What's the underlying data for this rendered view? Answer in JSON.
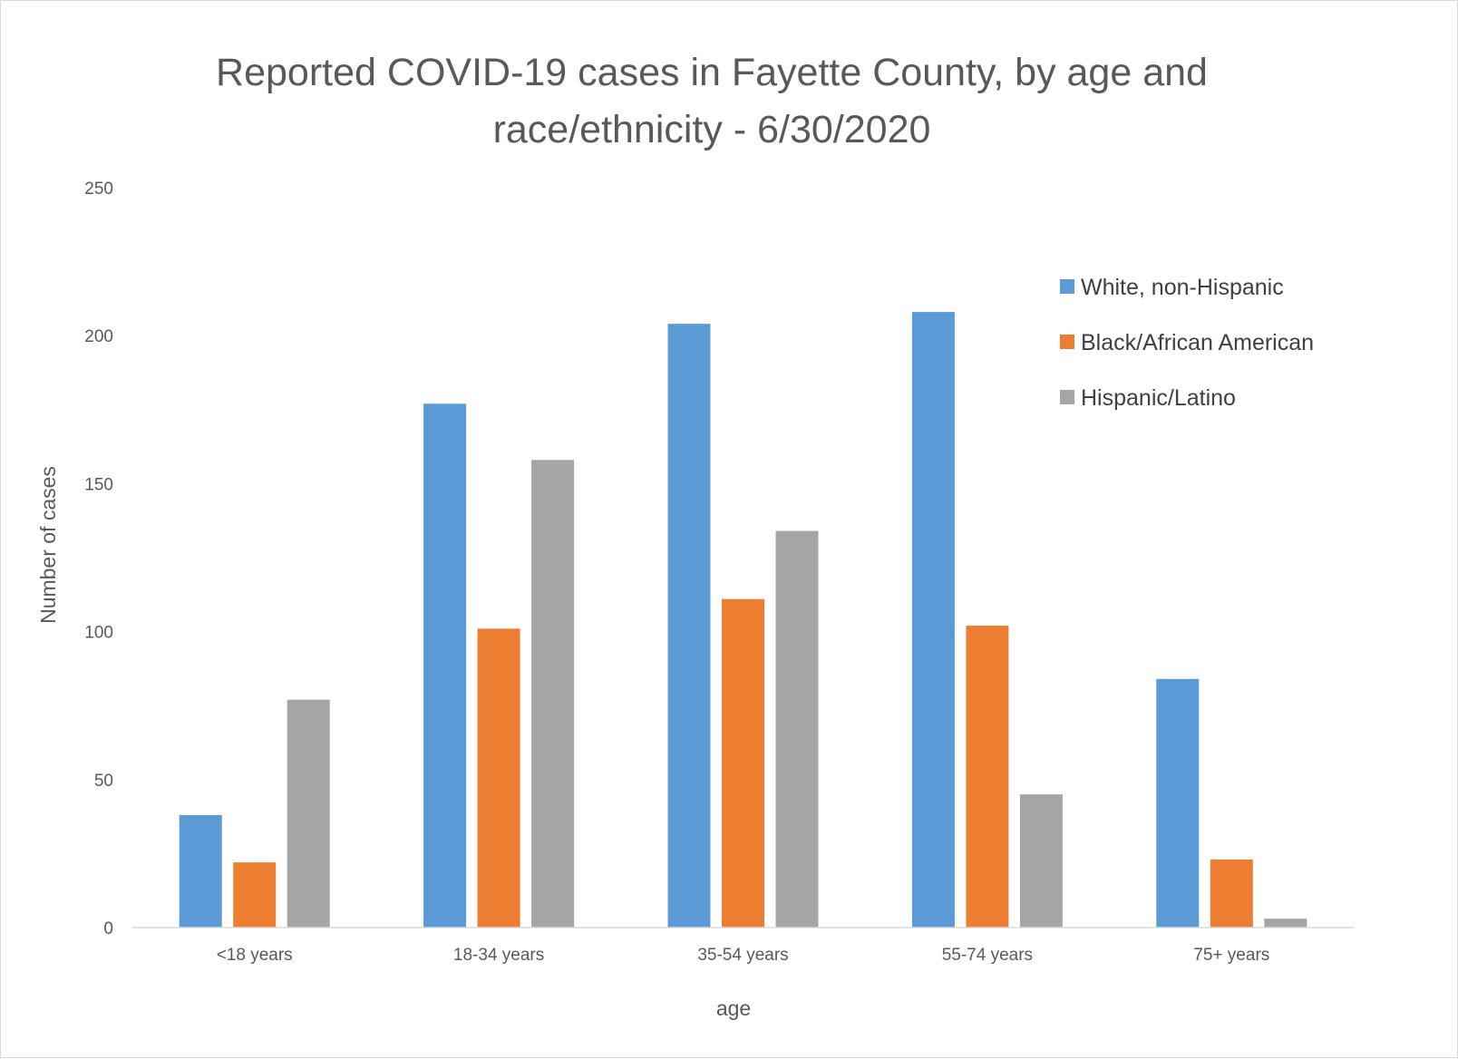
{
  "chart_data": {
    "type": "bar",
    "title_lines": [
      "Reported COVID-19 cases in Fayette County, by age and",
      "race/ethnicity - 6/30/2020"
    ],
    "xlabel": "age",
    "ylabel": "Number of cases",
    "categories": [
      "<18 years",
      "18-34 years",
      "35-54 years",
      "55-74 years",
      "75+ years"
    ],
    "ylim": [
      0,
      250
    ],
    "yticks": [
      0,
      50,
      100,
      150,
      200,
      250
    ],
    "grid": false,
    "legend_position": "right",
    "series": [
      {
        "name": "White, non-Hispanic",
        "color": "#5b9bd5",
        "values": [
          38,
          177,
          204,
          208,
          84
        ]
      },
      {
        "name": "Black/African American",
        "color": "#ed7d31",
        "values": [
          22,
          101,
          111,
          102,
          23
        ]
      },
      {
        "name": "Hispanic/Latino",
        "color": "#a5a5a5",
        "values": [
          77,
          158,
          134,
          45,
          3
        ]
      }
    ]
  }
}
